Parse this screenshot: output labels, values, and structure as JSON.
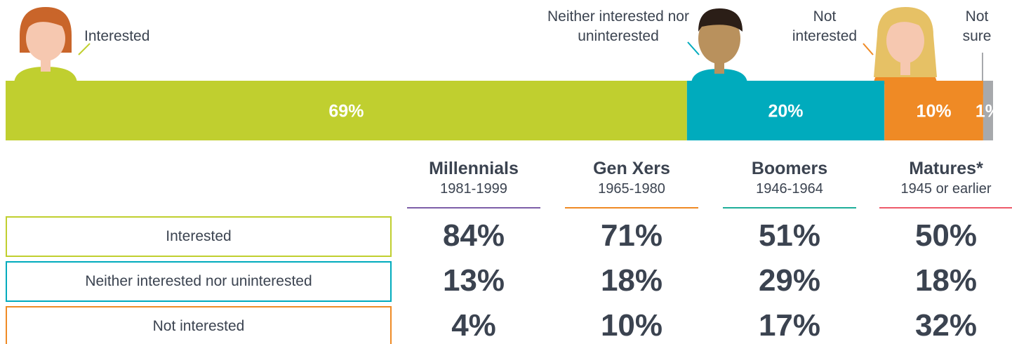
{
  "chart_data": {
    "type": "stacked-bar",
    "orientation": "horizontal",
    "xlim": [
      0,
      100
    ],
    "series": [
      {
        "name": "Interested",
        "color": "#c0cf2f",
        "values": [
          69
        ],
        "value_labels": [
          "69%"
        ]
      },
      {
        "name": "Neither interested nor uninterested",
        "color": "#00abbd",
        "values": [
          20
        ],
        "value_labels": [
          "20%"
        ]
      },
      {
        "name": "Not interested",
        "color": "#ef8a25",
        "values": [
          10
        ],
        "value_labels": [
          "10%"
        ]
      },
      {
        "name": "Not sure",
        "color": "#a7a9ac",
        "values": [
          1
        ],
        "value_labels": [
          "1%"
        ]
      }
    ]
  },
  "table": {
    "columns": [
      {
        "name": "Millennials",
        "years": "1981-1999",
        "color": "#7d5ea8"
      },
      {
        "name": "Gen Xers",
        "years": "1965-1980",
        "color": "#ef8a25"
      },
      {
        "name": "Boomers",
        "years": "1946-1964",
        "color": "#1fae9a"
      },
      {
        "name": "Matures*",
        "years": "1945 or earlier",
        "color": "#ee5a6a"
      }
    ],
    "rows": [
      {
        "label": "Interested",
        "color": "#c0cf2f",
        "values": [
          "84%",
          "71%",
          "51%",
          "50%"
        ]
      },
      {
        "label": "Neither interested nor uninterested",
        "color": "#00abbd",
        "values": [
          "13%",
          "18%",
          "29%",
          "18%"
        ]
      },
      {
        "label": "Not interested",
        "color": "#ef8a25",
        "values": [
          "4%",
          "10%",
          "17%",
          "32%"
        ]
      }
    ]
  }
}
